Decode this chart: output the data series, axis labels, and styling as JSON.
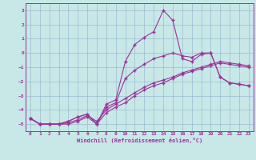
{
  "xlabel": "Windchill (Refroidissement éolien,°C)",
  "bg_color": "#c8e8e8",
  "line_color": "#993399",
  "grid_color": "#99bbcc",
  "xlim": [
    -0.5,
    23.5
  ],
  "ylim": [
    -5.5,
    3.5
  ],
  "yticks": [
    -5,
    -4,
    -3,
    -2,
    -1,
    0,
    1,
    2,
    3
  ],
  "xticks": [
    0,
    1,
    2,
    3,
    4,
    5,
    6,
    7,
    8,
    9,
    10,
    11,
    12,
    13,
    14,
    15,
    16,
    17,
    18,
    19,
    20,
    21,
    22,
    23
  ],
  "line1_x": [
    0,
    1,
    2,
    3,
    4,
    5,
    6,
    7,
    8,
    9,
    10,
    11,
    12,
    13,
    14,
    15,
    16,
    17,
    18,
    19,
    20,
    21,
    22,
    23
  ],
  "line1_y": [
    -4.6,
    -5.0,
    -5.0,
    -5.0,
    -5.0,
    -4.8,
    -4.5,
    -5.0,
    -4.2,
    -3.8,
    -3.5,
    -3.0,
    -2.6,
    -2.3,
    -2.1,
    -1.8,
    -1.5,
    -1.3,
    -1.1,
    -0.9,
    -0.7,
    -0.8,
    -0.9,
    -1.0
  ],
  "line2_x": [
    0,
    1,
    2,
    3,
    4,
    5,
    6,
    7,
    8,
    9,
    10,
    11,
    12,
    13,
    14,
    15,
    16,
    17,
    18,
    19,
    20,
    21,
    22,
    23
  ],
  "line2_y": [
    -4.6,
    -5.0,
    -5.0,
    -5.0,
    -4.9,
    -4.7,
    -4.4,
    -4.8,
    -4.0,
    -3.6,
    -3.2,
    -2.8,
    -2.4,
    -2.1,
    -1.9,
    -1.7,
    -1.4,
    -1.2,
    -1.0,
    -0.8,
    -0.6,
    -0.7,
    -0.8,
    -0.9
  ],
  "line3_x": [
    0,
    1,
    2,
    3,
    4,
    5,
    6,
    7,
    8,
    9,
    10,
    11,
    12,
    13,
    14,
    15,
    16,
    17,
    18,
    19,
    20,
    21,
    22,
    23
  ],
  "line3_y": [
    -4.6,
    -5.0,
    -5.0,
    -5.0,
    -4.8,
    -4.5,
    -4.3,
    -5.0,
    -3.6,
    -3.3,
    -0.6,
    0.6,
    1.1,
    1.5,
    3.0,
    2.3,
    -0.4,
    -0.6,
    -0.1,
    0.0,
    -1.7,
    -2.1,
    -2.2,
    -2.3
  ],
  "line4_x": [
    0,
    1,
    2,
    3,
    4,
    5,
    6,
    7,
    8,
    9,
    10,
    11,
    12,
    13,
    14,
    15,
    16,
    17,
    18,
    19,
    20,
    21,
    22,
    23
  ],
  "line4_y": [
    -4.6,
    -5.0,
    -5.0,
    -5.0,
    -4.8,
    -4.5,
    -4.3,
    -5.0,
    -3.8,
    -3.5,
    -1.8,
    -1.2,
    -0.8,
    -0.4,
    -0.2,
    0.0,
    -0.2,
    -0.3,
    -0.0,
    0.0,
    -1.7,
    -2.1,
    -2.2,
    -2.3
  ]
}
